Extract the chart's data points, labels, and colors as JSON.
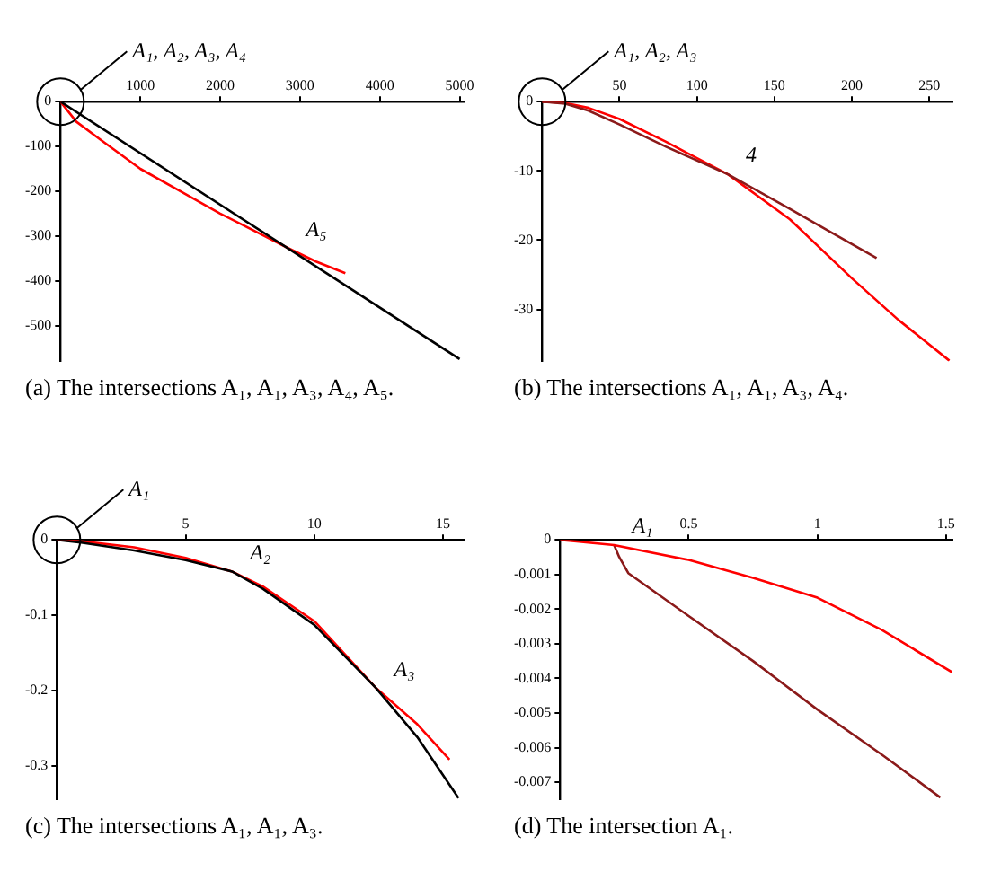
{
  "chart_data": [
    {
      "type": "line",
      "title": "(a) The intersections A₁, A₁, A₃, A₄, A₅.",
      "xlim": [
        0,
        5050
      ],
      "ylim": [
        -580,
        0
      ],
      "xticks": [
        1000,
        2000,
        3000,
        4000,
        5000
      ],
      "yticks": [
        0,
        -100,
        -200,
        -300,
        -400,
        -500
      ],
      "annotations": [
        "A₁, A₂, A₃, A₄",
        {
          "text": "A₅",
          "x": 2850,
          "y": -327
        }
      ],
      "series": [
        {
          "color": "#000000",
          "x": [
            0,
            5000
          ],
          "values": [
            0,
            -575
          ]
        },
        {
          "color": "#ff0000",
          "x": [
            0,
            200,
            500,
            1000,
            1500,
            2000,
            2500,
            2850,
            3200,
            3568
          ],
          "values": [
            0,
            -45,
            -85,
            -150,
            -200,
            -250,
            -295,
            -327,
            -357,
            -383
          ]
        }
      ]
    },
    {
      "type": "line",
      "title": "(b) The intersections A₁, A₁, A₃, A₄.",
      "xlim": [
        0,
        265
      ],
      "ylim": [
        -37.5,
        0
      ],
      "xticks": [
        50,
        100,
        150,
        200,
        250
      ],
      "yticks": [
        0,
        -10,
        -20,
        -30
      ],
      "annotations": [
        "A₁, A₂, A₃",
        {
          "text": "4",
          "x": 120,
          "y": -10.5
        }
      ],
      "series": [
        {
          "color": "#8b1a1a",
          "x": [
            0,
            15,
            30,
            50,
            80,
            120,
            160,
            216
          ],
          "values": [
            0,
            -0.3,
            -1.3,
            -3.3,
            -6.5,
            -10.5,
            -15.5,
            -22.6
          ]
        },
        {
          "color": "#ff0000",
          "x": [
            0,
            15,
            30,
            50,
            80,
            120,
            160,
            200,
            230,
            263
          ],
          "values": [
            0,
            -0.2,
            -0.9,
            -2.5,
            -5.8,
            -10.5,
            -17,
            -25.5,
            -31.5,
            -37.4
          ]
        }
      ]
    },
    {
      "type": "line",
      "title": "(c) The intersections A₁, A₁, A₃.",
      "xlim": [
        0,
        15.8
      ],
      "ylim": [
        -0.345,
        0
      ],
      "xticks": [
        5,
        10,
        15
      ],
      "yticks": [
        0,
        -0.1,
        -0.2,
        -0.3
      ],
      "annotations": [
        "A₁",
        {
          "text": "A₂",
          "x": 6.8,
          "y": -0.042
        },
        {
          "text": "A₃",
          "x": 12.4,
          "y": -0.197
        }
      ],
      "series": [
        {
          "color": "#000000",
          "x": [
            0,
            1,
            3,
            5,
            6.8,
            8,
            10,
            12.4,
            14,
            15.6
          ],
          "values": [
            0,
            -0.004,
            -0.014,
            -0.027,
            -0.042,
            -0.065,
            -0.113,
            -0.197,
            -0.262,
            -0.343
          ]
        },
        {
          "color": "#ff0000",
          "x": [
            0,
            1,
            3,
            5,
            6.8,
            8,
            10,
            12.4,
            14,
            15.25
          ],
          "values": [
            0,
            -0.002,
            -0.01,
            -0.024,
            -0.042,
            -0.062,
            -0.108,
            -0.197,
            -0.245,
            -0.292
          ]
        }
      ]
    },
    {
      "type": "line",
      "title": "(d) The intersection A₁.",
      "xlim": [
        0,
        1.525
      ],
      "ylim": [
        -0.0075,
        0
      ],
      "xticks": [
        0.5,
        1,
        1.5
      ],
      "yticks": [
        0,
        -0.001,
        -0.002,
        -0.003,
        -0.004,
        -0.005,
        -0.006,
        -0.007
      ],
      "annotations": [
        {
          "text": "A₁",
          "x": 0.21,
          "y": -0.00015
        }
      ],
      "series": [
        {
          "color": "#ff0000",
          "x": [
            0,
            0.21,
            0.5,
            0.75,
            1,
            1.25,
            1.525
          ],
          "values": [
            0,
            -0.00015,
            -0.00058,
            -0.0011,
            -0.00167,
            -0.0026,
            -0.00383
          ]
        },
        {
          "color": "#8b1a1a",
          "x": [
            0.21,
            0.23,
            0.265,
            0.5,
            0.75,
            1,
            1.25,
            1.478
          ],
          "values": [
            -0.00015,
            -0.0005,
            -0.00096,
            -0.0022,
            -0.0035,
            -0.0049,
            -0.0062,
            -0.00744
          ]
        }
      ]
    }
  ]
}
